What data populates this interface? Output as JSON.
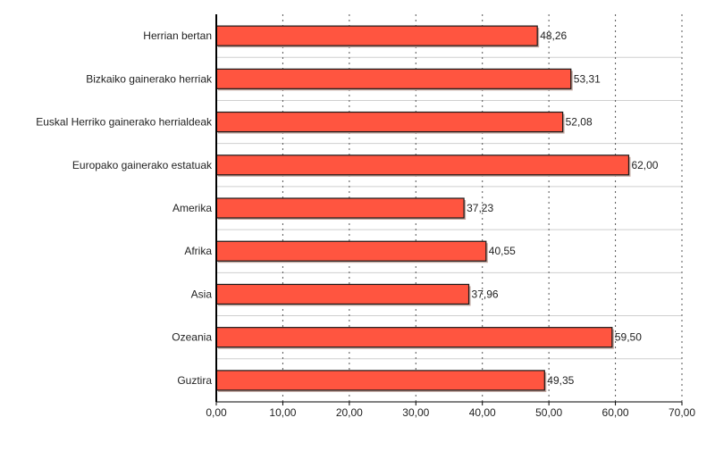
{
  "chart_data": {
    "type": "bar",
    "orientation": "horizontal",
    "categories": [
      "Herrian bertan",
      "Bizkaiko gainerako herriak",
      "Euskal Herriko gainerako herrialdeak",
      "Europako gainerako estatuak",
      "Amerika",
      "Afrika",
      "Asia",
      "Ozeania",
      "Guztira"
    ],
    "values": [
      48.26,
      53.31,
      52.08,
      62.0,
      37.23,
      40.55,
      37.96,
      59.5,
      49.35
    ],
    "value_labels": [
      "48,26",
      "53,31",
      "52,08",
      "62,00",
      "37,23",
      "40,55",
      "37,96",
      "59,50",
      "49,35"
    ],
    "xlim": [
      0,
      70
    ],
    "x_ticks": [
      0,
      10,
      20,
      30,
      40,
      50,
      60,
      70
    ],
    "x_tick_labels": [
      "0,00",
      "10,00",
      "20,00",
      "30,00",
      "40,00",
      "50,00",
      "60,00",
      "70,00"
    ],
    "title": "",
    "xlabel": "",
    "ylabel": "",
    "grid": true,
    "bar_color": "#ff5540",
    "bar_outline_color": "#1a1a1a",
    "bar_shadow_color": "#c2a79f"
  }
}
